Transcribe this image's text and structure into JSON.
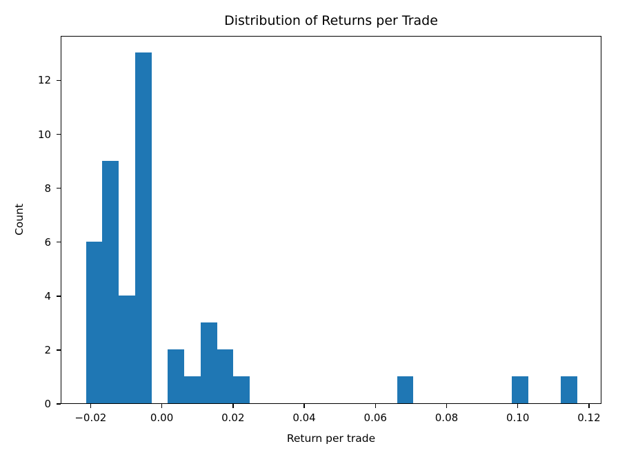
{
  "chart_data": {
    "type": "bar",
    "subtype": "histogram",
    "title": "Distribution of Returns per Trade",
    "xlabel": "Return per trade",
    "ylabel": "Count",
    "bar_color": "#1f77b4",
    "background_color": "#ffffff",
    "spine_color": "#000000",
    "grid": false,
    "legend": null,
    "n_bins": 30,
    "bin_start": -0.0215,
    "bin_width": 0.0046,
    "counts": [
      6,
      9,
      4,
      13,
      0,
      2,
      1,
      3,
      2,
      1,
      0,
      0,
      0,
      0,
      0,
      0,
      0,
      0,
      0,
      1,
      0,
      0,
      0,
      0,
      0,
      0,
      1,
      0,
      0,
      1
    ],
    "xlim": [
      -0.0284,
      0.1235
    ],
    "ylim": [
      0,
      13.65
    ],
    "x_ticks": [
      -0.02,
      0.0,
      0.02,
      0.04,
      0.06,
      0.08,
      0.1,
      0.12
    ],
    "x_tick_labels": [
      "−0.02",
      "0.00",
      "0.02",
      "0.04",
      "0.06",
      "0.08",
      "0.10",
      "0.12"
    ],
    "y_ticks": [
      0,
      2,
      4,
      6,
      8,
      10,
      12
    ],
    "y_tick_labels": [
      "0",
      "2",
      "4",
      "6",
      "8",
      "10",
      "12"
    ]
  }
}
